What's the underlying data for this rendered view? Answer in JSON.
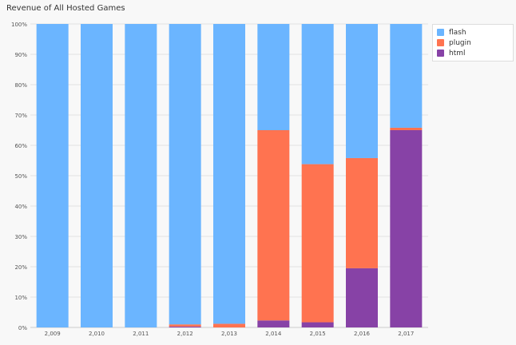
{
  "chart_data": {
    "type": "bar",
    "stacked": true,
    "title": "Revenue of All Hosted Games",
    "xlabel": "",
    "ylabel": "",
    "ylim": [
      0,
      100
    ],
    "yticks": [
      "0%",
      "10%",
      "20%",
      "30%",
      "40%",
      "50%",
      "60%",
      "70%",
      "80%",
      "90%",
      "100%"
    ],
    "categories": [
      "2,009",
      "2,010",
      "2,011",
      "2,012",
      "2,013",
      "2,014",
      "2,015",
      "2,016",
      "2,017"
    ],
    "series": [
      {
        "name": "html",
        "color": "#8742a6",
        "values": [
          0,
          0,
          0,
          0.3,
          0,
          2.3,
          1.7,
          19.5,
          65
        ]
      },
      {
        "name": "plugin",
        "color": "#ff7350",
        "values": [
          0,
          0,
          0,
          0.7,
          1.2,
          62.7,
          52.1,
          36.3,
          0.8
        ]
      },
      {
        "name": "flash",
        "color": "#6bb5ff",
        "values": [
          100,
          100,
          100,
          99,
          98.8,
          35,
          46.2,
          44.2,
          34.2
        ]
      }
    ],
    "legend": {
      "position": "top-right",
      "entries": [
        "flash",
        "plugin",
        "html"
      ]
    },
    "grid": true
  }
}
